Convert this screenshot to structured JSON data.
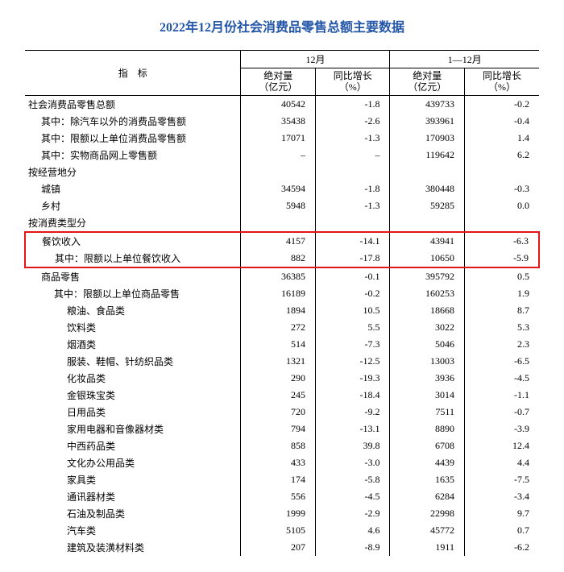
{
  "title": "2022年12月份社会消费品零售总额主要数据",
  "header": {
    "indicator": "指　标",
    "period1": "12月",
    "period2": "1—12月",
    "abs": "绝对量",
    "abs_unit": "（亿元）",
    "yoy": "同比增长",
    "yoy_unit": "（%）"
  },
  "highlight_color": "#e31515",
  "text_color": "#000000",
  "title_color": "#2456a8",
  "rows": [
    {
      "label": "社会消费品零售总额",
      "pad": 0,
      "v1": "40542",
      "g1": "-1.8",
      "v2": "439733",
      "g2": "-0.2"
    },
    {
      "label": "其中：除汽车以外的消费品零售额",
      "pad": 1,
      "v1": "35438",
      "g1": "-2.6",
      "v2": "393961",
      "g2": "-0.4"
    },
    {
      "label": "其中：限额以上单位消费品零售额",
      "pad": 1,
      "v1": "17071",
      "g1": "-1.3",
      "v2": "170903",
      "g2": "1.4"
    },
    {
      "label": "其中：实物商品网上零售额",
      "pad": 1,
      "v1": "–",
      "g1": "–",
      "v2": "119642",
      "g2": "6.2"
    },
    {
      "label": "按经营地分",
      "pad": 0,
      "v1": "",
      "g1": "",
      "v2": "",
      "g2": ""
    },
    {
      "label": "城镇",
      "pad": 1,
      "v1": "34594",
      "g1": "-1.8",
      "v2": "380448",
      "g2": "-0.3"
    },
    {
      "label": "乡村",
      "pad": 1,
      "v1": "5948",
      "g1": "-1.3",
      "v2": "59285",
      "g2": "0.0"
    },
    {
      "label": "按消费类型分",
      "pad": 0,
      "v1": "",
      "g1": "",
      "v2": "",
      "g2": ""
    },
    {
      "label": "餐饮收入",
      "pad": 1,
      "v1": "4157",
      "g1": "-14.1",
      "v2": "43941",
      "g2": "-6.3",
      "hl": "top"
    },
    {
      "label": "其中：限额以上单位餐饮收入",
      "pad": 2,
      "v1": "882",
      "g1": "-17.8",
      "v2": "10650",
      "g2": "-5.9",
      "hl": "bot"
    },
    {
      "label": "商品零售",
      "pad": 1,
      "v1": "36385",
      "g1": "-0.1",
      "v2": "395792",
      "g2": "0.5"
    },
    {
      "label": "其中：限额以上单位商品零售",
      "pad": 2,
      "v1": "16189",
      "g1": "-0.2",
      "v2": "160253",
      "g2": "1.9"
    },
    {
      "label": "粮油、食品类",
      "pad": 3,
      "v1": "1894",
      "g1": "10.5",
      "v2": "18668",
      "g2": "8.7"
    },
    {
      "label": "饮料类",
      "pad": 3,
      "v1": "272",
      "g1": "5.5",
      "v2": "3022",
      "g2": "5.3"
    },
    {
      "label": "烟酒类",
      "pad": 3,
      "v1": "514",
      "g1": "-7.3",
      "v2": "5046",
      "g2": "2.3"
    },
    {
      "label": "服装、鞋帽、针纺织品类",
      "pad": 3,
      "v1": "1321",
      "g1": "-12.5",
      "v2": "13003",
      "g2": "-6.5"
    },
    {
      "label": "化妆品类",
      "pad": 3,
      "v1": "290",
      "g1": "-19.3",
      "v2": "3936",
      "g2": "-4.5"
    },
    {
      "label": "金银珠宝类",
      "pad": 3,
      "v1": "245",
      "g1": "-18.4",
      "v2": "3014",
      "g2": "-1.1"
    },
    {
      "label": "日用品类",
      "pad": 3,
      "v1": "720",
      "g1": "-9.2",
      "v2": "7511",
      "g2": "-0.7"
    },
    {
      "label": "家用电器和音像器材类",
      "pad": 3,
      "v1": "794",
      "g1": "-13.1",
      "v2": "8890",
      "g2": "-3.9"
    },
    {
      "label": "中西药品类",
      "pad": 3,
      "v1": "858",
      "g1": "39.8",
      "v2": "6708",
      "g2": "12.4"
    },
    {
      "label": "文化办公用品类",
      "pad": 3,
      "v1": "433",
      "g1": "-3.0",
      "v2": "4439",
      "g2": "4.4"
    },
    {
      "label": "家具类",
      "pad": 3,
      "v1": "174",
      "g1": "-5.8",
      "v2": "1635",
      "g2": "-7.5"
    },
    {
      "label": "通讯器材类",
      "pad": 3,
      "v1": "556",
      "g1": "-4.5",
      "v2": "6284",
      "g2": "-3.4"
    },
    {
      "label": "石油及制品类",
      "pad": 3,
      "v1": "1999",
      "g1": "-2.9",
      "v2": "22998",
      "g2": "9.7"
    },
    {
      "label": "汽车类",
      "pad": 3,
      "v1": "5105",
      "g1": "4.6",
      "v2": "45772",
      "g2": "0.7"
    },
    {
      "label": "建筑及装潢材料类",
      "pad": 3,
      "v1": "207",
      "g1": "-8.9",
      "v2": "1911",
      "g2": "-6.2"
    }
  ]
}
